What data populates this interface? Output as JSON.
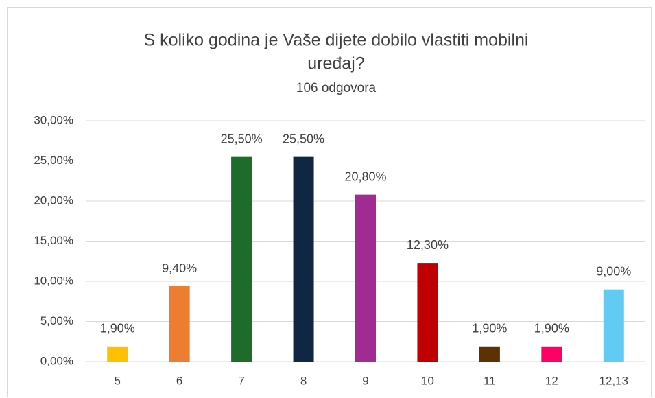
{
  "chart_data": {
    "type": "bar",
    "title": [
      "S koliko godina je Vaše dijete dobilo vlastiti mobilni",
      "uređaj?"
    ],
    "subtitle": "106 odgovora",
    "categories": [
      "5",
      "6",
      "7",
      "8",
      "9",
      "10",
      "11",
      "12",
      "12,13"
    ],
    "values": [
      1.9,
      9.4,
      25.5,
      25.5,
      20.8,
      12.3,
      1.9,
      1.9,
      9.0
    ],
    "value_labels": [
      "1,90%",
      "9,40%",
      "25,50%",
      "25,50%",
      "20,80%",
      "12,30%",
      "1,90%",
      "1,90%",
      "9,00%"
    ],
    "colors": [
      "#ffc000",
      "#ed7d31",
      "#1e6b2a",
      "#0f2742",
      "#a02b93",
      "#c00000",
      "#5f3000",
      "#ff0066",
      "#61cbf3"
    ],
    "ylim": [
      0,
      30
    ],
    "yticks": [
      {
        "value": 0,
        "label": "0,00%"
      },
      {
        "value": 5,
        "label": "5,00%"
      },
      {
        "value": 10,
        "label": "10,00%"
      },
      {
        "value": 15,
        "label": "15,00%"
      },
      {
        "value": 20,
        "label": "20,00%"
      },
      {
        "value": 25,
        "label": "25,00%"
      },
      {
        "value": 30,
        "label": "30,00%"
      }
    ],
    "grid": true
  }
}
